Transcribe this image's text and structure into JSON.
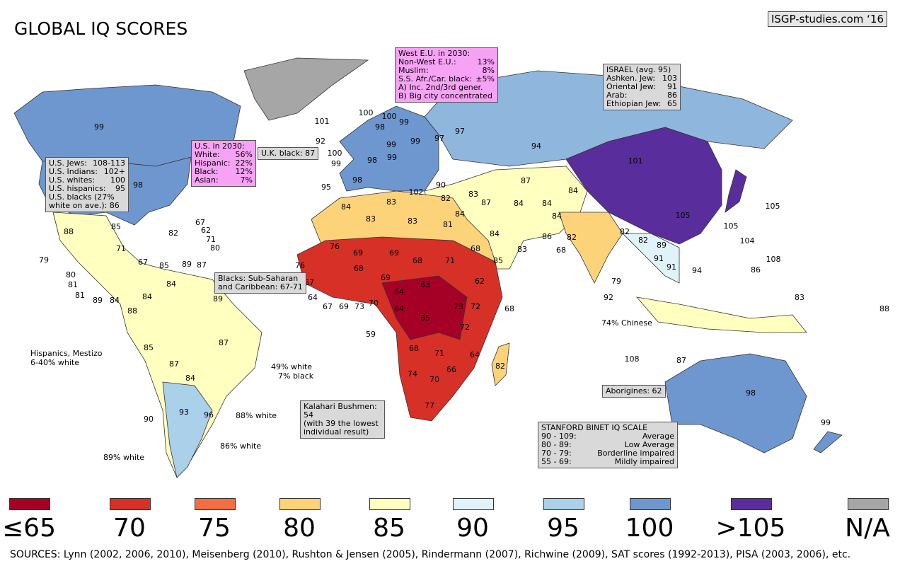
{
  "title": "GLOBAL IQ SCORES",
  "credit": "ISGP-studies.com ‘16",
  "map_labels": [
    99,
    98,
    101,
    100,
    98,
    92,
    100,
    99,
    100,
    99,
    97,
    99,
    99,
    97,
    98,
    99,
    98,
    95,
    102,
    94,
    90,
    101,
    105,
    105,
    105,
    104,
    108,
    87,
    84,
    84,
    84,
    84,
    87,
    83,
    84,
    82,
    81,
    83,
    83,
    84,
    83,
    76,
    69,
    69,
    68,
    71,
    68,
    62,
    68,
    72,
    73,
    65,
    63,
    64,
    64,
    68,
    69,
    70,
    73,
    69,
    67,
    64,
    67,
    76,
    59,
    68,
    71,
    72,
    64,
    66,
    70,
    74,
    77,
    82,
    86,
    83,
    84,
    85,
    68,
    82,
    82,
    82,
    89,
    91,
    91,
    94,
    86,
    79,
    92,
    108,
    87,
    83,
    88,
    98,
    99,
    88,
    85,
    82,
    71,
    67,
    79,
    80,
    81,
    81,
    89,
    84,
    85,
    89,
    87,
    67,
    62,
    71,
    80,
    84,
    84,
    89,
    88,
    85,
    87,
    84,
    87,
    93,
    96,
    90
  ],
  "annotations": {
    "west_eu": {
      "title": "West E.U. in 2030:",
      "rows": [
        [
          "Non-West E.U.:",
          "13%"
        ],
        [
          "Muslim:",
          "8%"
        ],
        [
          "S.S. Afr./Car. black:",
          "±5%"
        ]
      ],
      "notes": [
        "A) Inc. 2nd/3rd gener.",
        "B) Big city concentrated"
      ]
    },
    "israel": {
      "title": "ISRAEL (avg. 95)",
      "rows": [
        [
          "Ashken. Jew:",
          103
        ],
        [
          "Oriental Jew:",
          91
        ],
        [
          "Arab:",
          86
        ],
        [
          "Ethiopian Jew:",
          65
        ]
      ]
    },
    "us_2030": {
      "title": "U.S. in 2030:",
      "rows": [
        [
          "White:",
          "56%"
        ],
        [
          "Hispanic:",
          "22%"
        ],
        [
          "Black:",
          "12%"
        ],
        [
          "Asian:",
          "7%"
        ]
      ]
    },
    "us_groups": {
      "rows": [
        [
          "U.S. Jews:",
          "108-113"
        ],
        [
          "U.S. Indians:",
          "102+"
        ],
        [
          "U.S. whites:",
          100
        ],
        [
          "U.S. hispanics:",
          95
        ]
      ],
      "notes": [
        "U.S. blacks (27%",
        "white on ave.): 86"
      ]
    },
    "uk_black": {
      "notes": [
        "U.K. black: 87"
      ]
    },
    "blacks": {
      "notes": [
        "Blacks: Sub-Saharan",
        "and Caribbean: 67-71"
      ]
    },
    "kalahari": {
      "notes": [
        "Kalahari Bushmen: 54",
        "(with 39 the lowest",
        "individual result)"
      ]
    },
    "aborigines": {
      "notes": [
        "Aborigines: 62"
      ]
    },
    "stanford": {
      "title": "STANFORD BINET IQ SCALE",
      "rows": [
        [
          "90 - 109:",
          "Average"
        ],
        [
          "80  - 89:",
          "Low Average"
        ],
        [
          "70 - 79:",
          "Borderline impaired"
        ],
        [
          "55 - 69:",
          "Mildly impaired"
        ]
      ]
    }
  },
  "texts": [
    "Hispanics, Mestizo",
    "6-40% white",
    "49% white",
    "7% black",
    "88% white",
    "86% white",
    "89% white",
    "74% Chinese"
  ],
  "legend": [
    {
      "label": "≤65",
      "color": "#a50026"
    },
    {
      "label": "70",
      "color": "#d73027"
    },
    {
      "label": "75",
      "color": "#f46d43"
    },
    {
      "label": "80",
      "color": "#fdd37a"
    },
    {
      "label": "85",
      "color": "#ffffbf"
    },
    {
      "label": "90",
      "color": "#e0f3f8"
    },
    {
      "label": "95",
      "color": "#abd0e9"
    },
    {
      "label": "100",
      "color": "#6f97cf"
    },
    {
      "label": ">105",
      "color": "#5a2d9c"
    },
    {
      "label": "N/A",
      "color": "#a6a6a6"
    }
  ],
  "sources": "SOURCES: Lynn (2002, 2006, 2010), Meisenberg (2010), Rushton & Jensen (2005), Rindermann (2007), Richwine (2009), SAT scores (1992-2013), PISA (2003, 2006), etc."
}
